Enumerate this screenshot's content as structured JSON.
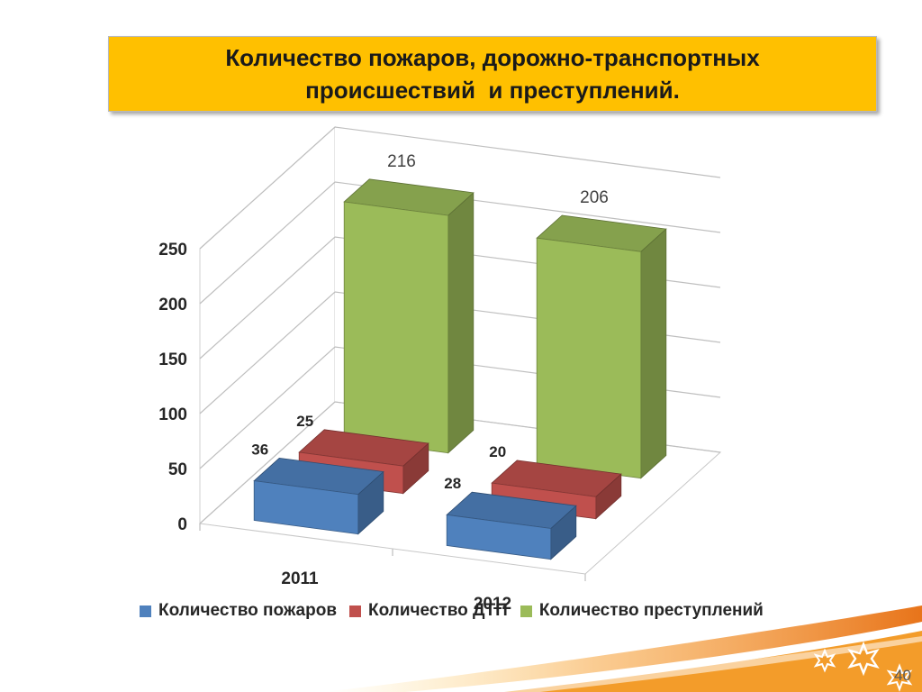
{
  "title": {
    "line1": "Количество пожаров, дорожно-транспортных",
    "line2": "происшествий  и преступлений."
  },
  "chart_data": {
    "type": "bar",
    "variant": "3d-clustered-column",
    "categories": [
      "2011",
      "2012"
    ],
    "series": [
      {
        "name": "Количество пожаров",
        "values": [
          36,
          28
        ],
        "color": "#4f81bd",
        "label_style": "bold"
      },
      {
        "name": "Количество ДТП",
        "values": [
          25,
          20
        ],
        "color": "#c0504d",
        "label_style": "bold"
      },
      {
        "name": "Количество преступлений",
        "values": [
          216,
          206
        ],
        "color": "#9bbb59",
        "label_style": "regular"
      }
    ],
    "ylim": [
      0,
      250
    ],
    "yticks": [
      0,
      50,
      100,
      150,
      200,
      250
    ],
    "grid": true,
    "legend_position": "bottom"
  },
  "page_number": "40",
  "colors": {
    "title_background": "#ffc000",
    "accent_swoosh": "#f08a1d"
  },
  "icons": [
    "star-burst-icon",
    "star-burst-icon",
    "star-burst-icon"
  ]
}
